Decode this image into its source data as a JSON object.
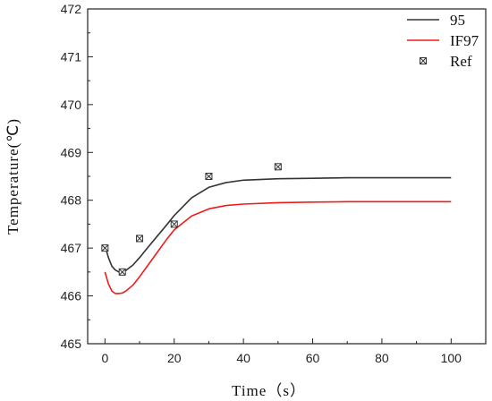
{
  "chart_data": {
    "type": "line",
    "xlabel": "Time（s）",
    "ylabel": "Temperature(℃)",
    "xlim": [
      -5,
      110
    ],
    "ylim": [
      465,
      472
    ],
    "xticks": [
      0,
      20,
      40,
      60,
      80,
      100
    ],
    "yticks": [
      465,
      466,
      467,
      468,
      469,
      470,
      471,
      472
    ],
    "legend_position": "top-right",
    "grid": false,
    "series": [
      {
        "name": "95",
        "kind": "line",
        "color": "#333333",
        "x": [
          0,
          1,
          2,
          3,
          4,
          5,
          6,
          8,
          10,
          12,
          15,
          18,
          20,
          25,
          30,
          35,
          40,
          50,
          60,
          70,
          80,
          90,
          100
        ],
        "y": [
          467.05,
          466.8,
          466.62,
          466.54,
          466.5,
          466.5,
          466.53,
          466.64,
          466.8,
          466.98,
          467.24,
          467.5,
          467.68,
          468.05,
          468.27,
          468.37,
          468.42,
          468.45,
          468.46,
          468.47,
          468.47,
          468.47,
          468.47
        ]
      },
      {
        "name": "IF97",
        "kind": "line",
        "color": "#ee1c1c",
        "x": [
          0,
          1,
          2,
          3,
          4,
          5,
          6,
          8,
          10,
          12,
          15,
          18,
          20,
          25,
          30,
          35,
          40,
          50,
          60,
          70,
          80,
          90,
          100
        ],
        "y": [
          466.5,
          466.25,
          466.1,
          466.05,
          466.05,
          466.06,
          466.1,
          466.22,
          466.4,
          466.6,
          466.9,
          467.2,
          467.38,
          467.67,
          467.82,
          467.89,
          467.92,
          467.95,
          467.96,
          467.97,
          467.97,
          467.97,
          467.97
        ]
      },
      {
        "name": "Ref",
        "kind": "scatter",
        "color": "#333333",
        "x": [
          0,
          5,
          10,
          20,
          30,
          50
        ],
        "y": [
          467.0,
          466.5,
          467.2,
          467.5,
          468.5,
          468.7
        ]
      }
    ]
  }
}
